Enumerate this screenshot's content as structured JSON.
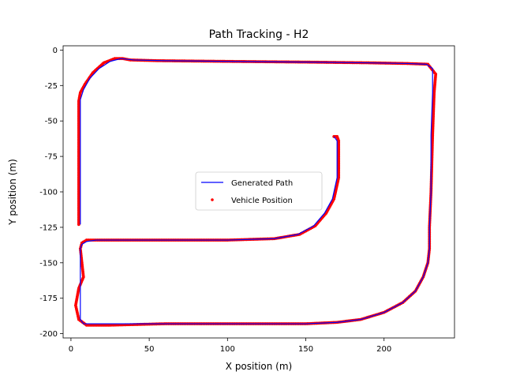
{
  "chart_data": {
    "type": "line",
    "title": "Path Tracking - H2",
    "xlabel": "X position (m)",
    "ylabel": "Y position (m)",
    "xlim": [
      -5,
      245
    ],
    "ylim": [
      -203,
      3
    ],
    "xticks": [
      0,
      50,
      100,
      150,
      200
    ],
    "yticks": [
      0,
      -25,
      -50,
      -75,
      -100,
      -125,
      -150,
      -175,
      -200
    ],
    "grid": false,
    "legend_position": "center",
    "colors": {
      "generated": "#0000ff",
      "vehicle": "#ff0000"
    },
    "series": [
      {
        "name": "Generated Path",
        "style": "line",
        "x": [
          6,
          6,
          6,
          8,
          12,
          18,
          25,
          32,
          40,
          60,
          100,
          150,
          190,
          215,
          227,
          231,
          231,
          230,
          230,
          229,
          229,
          228,
          225,
          220,
          212,
          200,
          185,
          170,
          150,
          100,
          60,
          25,
          15,
          8,
          6,
          6,
          7,
          10,
          16,
          25,
          60,
          100,
          130,
          145,
          155,
          162,
          167,
          170,
          170,
          170,
          168
        ],
        "y": [
          -123,
          -80,
          -35,
          -28,
          -20,
          -13,
          -8,
          -6,
          -7,
          -7.5,
          -8,
          -8.5,
          -9,
          -9.5,
          -10,
          -13,
          -30,
          -60,
          -100,
          -125,
          -140,
          -150,
          -160,
          -170,
          -178,
          -185,
          -190,
          -192,
          -193,
          -193,
          -193,
          -193,
          -193,
          -193,
          -190,
          -140,
          -137,
          -135,
          -134,
          -134,
          -134,
          -134,
          -133,
          -130,
          -124,
          -115,
          -105,
          -90,
          -75,
          -64,
          -61
        ]
      },
      {
        "name": "Vehicle Position",
        "style": "scatter",
        "x": [
          5,
          5,
          5,
          6,
          9,
          14,
          21,
          28,
          33,
          38,
          55,
          100,
          150,
          190,
          215,
          228,
          233,
          232,
          231,
          230,
          229,
          229,
          228,
          225,
          220,
          212,
          200,
          185,
          170,
          150,
          100,
          60,
          25,
          10,
          5,
          3,
          5,
          8,
          6,
          7,
          10,
          17,
          26,
          60,
          100,
          130,
          146,
          156,
          163,
          168,
          171,
          171,
          171,
          170,
          168
        ],
        "y": [
          -123,
          -80,
          -36,
          -30,
          -24,
          -16,
          -9,
          -6,
          -6,
          -7,
          -7.5,
          -8,
          -8.5,
          -9,
          -9.5,
          -10,
          -17,
          -30,
          -60,
          -100,
          -125,
          -140,
          -150,
          -160,
          -170,
          -178,
          -185,
          -190,
          -192,
          -193,
          -193,
          -193,
          -194,
          -194,
          -190,
          -180,
          -168,
          -160,
          -140,
          -136,
          -134,
          -134,
          -134,
          -134,
          -134,
          -133,
          -130,
          -124,
          -115,
          -105,
          -90,
          -75,
          -64,
          -61,
          -61
        ]
      }
    ]
  }
}
